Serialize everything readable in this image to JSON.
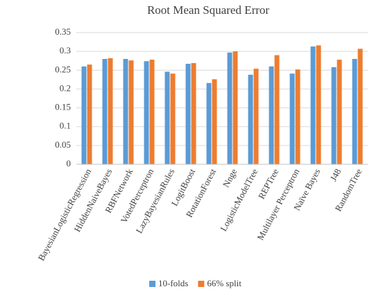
{
  "chart_data": {
    "type": "bar",
    "title": "Root Mean Squared Error",
    "categories": [
      "BayesianLogisticRegression",
      "HiddenNaiveBayes",
      "RBFNetwork",
      "VotedPerceptron",
      "LazyBayesianRules",
      "LogitBoost",
      "RotationForest",
      "Nnge",
      "LogisticModelTree",
      "REPTree",
      "Multilayer Perceptron",
      "Naïve Bayes",
      "J48",
      "RandomTree"
    ],
    "series": [
      {
        "name": "10-folds",
        "color": "#5b9bd5",
        "values": [
          0.26,
          0.28,
          0.28,
          0.274,
          0.246,
          0.267,
          0.216,
          0.297,
          0.238,
          0.26,
          0.241,
          0.313,
          0.258,
          0.28
        ]
      },
      {
        "name": "66% split",
        "color": "#ed7d31",
        "values": [
          0.265,
          0.282,
          0.276,
          0.278,
          0.241,
          0.269,
          0.226,
          0.3,
          0.254,
          0.29,
          0.252,
          0.316,
          0.278,
          0.307
        ]
      }
    ],
    "ylim": [
      0,
      0.35
    ],
    "yticks": [
      0,
      0.05,
      0.1,
      0.15,
      0.2,
      0.25,
      0.3,
      0.35
    ],
    "grid": true,
    "legend": "bottom"
  }
}
